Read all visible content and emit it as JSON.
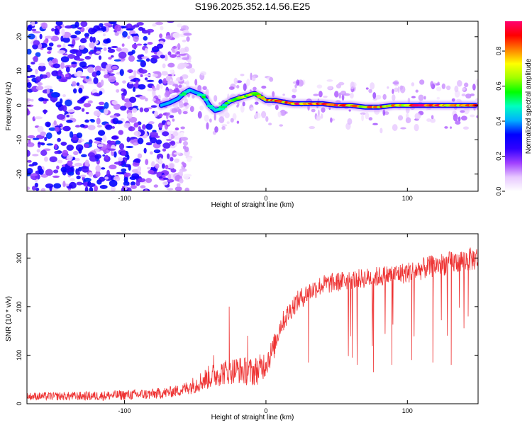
{
  "title": "S196.2025.352.14.56.E25",
  "chart_data": [
    {
      "type": "heatmap",
      "title": "S196.2025.352.14.56.E25",
      "xlabel": "Height of straight line (km)",
      "ylabel": "Frequency (Hz)",
      "xlim": [
        -169,
        150
      ],
      "ylim": [
        -25,
        24.5
      ],
      "xticks": [
        "-100",
        "0",
        "100"
      ],
      "yticks": [
        "-20",
        "-10",
        "0",
        "10",
        "20"
      ],
      "colorbar": {
        "label": "Normalized spectral amplitude",
        "range": [
          0,
          0.97
        ],
        "ticks": [
          "0.0",
          "0.2",
          "0.4",
          "0.6",
          "0.8"
        ],
        "colormap": [
          "#ffffff",
          "#e7c8ff",
          "#a040ff",
          "#3000ff",
          "#0000ff",
          "#00b0ff",
          "#00ffc0",
          "#00ff00",
          "#a0ff00",
          "#ffff00",
          "#ff8000",
          "#ff0000",
          "#ff0070"
        ]
      },
      "track": {
        "x": [
          -74,
          -68,
          -62,
          -58,
          -54,
          -50,
          -46,
          -43,
          -40,
          -36,
          -32,
          -28,
          -24,
          -20,
          -16,
          -12,
          -8,
          -4,
          0,
          6,
          12,
          20,
          30,
          40,
          50,
          60,
          70,
          80,
          90,
          100,
          110,
          120,
          130,
          140,
          148
        ],
        "y": [
          0,
          0.8,
          2,
          3.5,
          4.5,
          3.8,
          3.2,
          2,
          0,
          -1.5,
          -1,
          0.5,
          1.5,
          2,
          2.5,
          3,
          3.5,
          2.5,
          1.5,
          1.5,
          1,
          0.5,
          0.5,
          0.5,
          0,
          0,
          -0.5,
          -0.5,
          0,
          0,
          0,
          0,
          0,
          0,
          0
        ],
        "peak_amplitude": [
          0.3,
          0.35,
          0.45,
          0.5,
          0.45,
          0.4,
          0.5,
          0.55,
          0.5,
          0.4,
          0.45,
          0.55,
          0.6,
          0.65,
          0.7,
          0.75,
          0.7,
          0.75,
          0.8,
          0.85,
          0.85,
          0.9,
          0.95,
          0.95,
          0.9,
          0.85,
          0.8,
          0.85,
          0.8,
          0.85,
          0.9,
          0.9,
          0.85,
          0.8,
          0.9
        ]
      },
      "noise_region": {
        "x_range": [
          -169,
          -62
        ],
        "amplitude_range": [
          0.05,
          0.35
        ]
      }
    },
    {
      "type": "line",
      "xlabel": "Height of straight line (km)",
      "ylabel": "SNR (10 * v/v)",
      "xlim": [
        -169,
        150
      ],
      "ylim": [
        0,
        350
      ],
      "xticks": [
        "-100",
        "0",
        "100"
      ],
      "yticks": [
        "0",
        "100",
        "200",
        "300"
      ],
      "color": "#ee3333",
      "baseline": {
        "x": [
          -169,
          -120,
          -80,
          -70,
          -60,
          -50,
          -40,
          -30,
          -20,
          -10,
          -5,
          0,
          5,
          10,
          20,
          30,
          40,
          60,
          80,
          100,
          120,
          150
        ],
        "y": [
          15,
          16,
          20,
          23,
          28,
          40,
          55,
          65,
          70,
          65,
          70,
          85,
          110,
          160,
          205,
          230,
          245,
          255,
          262,
          270,
          285,
          300
        ]
      },
      "noise_amplitude": {
        "x": [
          -169,
          -60,
          -40,
          -10,
          0,
          10,
          60,
          150
        ],
        "y": [
          8,
          12,
          25,
          30,
          30,
          22,
          20,
          25
        ]
      },
      "spikes": [
        {
          "x": -37,
          "y": 100
        },
        {
          "x": -26,
          "y": 200
        },
        {
          "x": -13,
          "y": 140
        },
        {
          "x": 30,
          "y": 85
        },
        {
          "x": 61,
          "y": 95
        },
        {
          "x": 76,
          "y": 65
        },
        {
          "x": 89,
          "y": 80
        },
        {
          "x": 103,
          "y": 90
        },
        {
          "x": 118,
          "y": 85
        },
        {
          "x": 131,
          "y": 80
        },
        {
          "x": 143,
          "y": 180
        }
      ]
    }
  ]
}
